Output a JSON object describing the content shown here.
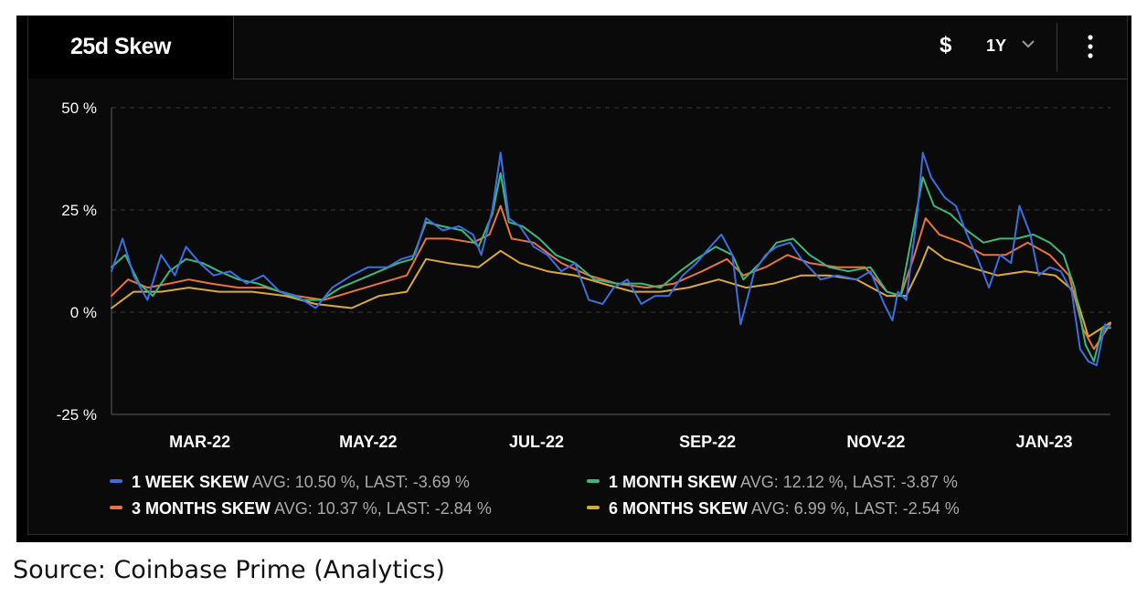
{
  "header": {
    "title": "25d Skew",
    "currency_label": "$",
    "range_label": "1Y"
  },
  "colors": {
    "background": "#0a0a0a",
    "grid": "#3a3a3a",
    "axis_text": "#ffffff",
    "week": "#3b6fe0",
    "month": "#3db87a",
    "three_month": "#e8743b",
    "six_month": "#d9a93a"
  },
  "legend": [
    {
      "name": "1 WEEK SKEW",
      "stats": "AVG: 10.50 %, LAST: -3.69 %",
      "color": "#3b6fe0"
    },
    {
      "name": "1 MONTH SKEW",
      "stats": "AVG: 12.12 %, LAST: -3.87 %",
      "color": "#3db87a"
    },
    {
      "name": "3 MONTHS SKEW",
      "stats": "AVG: 10.37 %, LAST: -2.84 %",
      "color": "#e8743b"
    },
    {
      "name": "6 MONTHS SKEW",
      "stats": "AVG: 6.99 %, LAST: -2.54 %",
      "color": "#d9a93a"
    }
  ],
  "source": "Source: Coinbase Prime (Analytics)",
  "chart_data": {
    "type": "line",
    "title": "25d Skew",
    "x_ticks": [
      "MAR-22",
      "MAY-22",
      "JUL-22",
      "SEP-22",
      "NOV-22",
      "JAN-23"
    ],
    "y_ticks": [
      "50 %",
      "25 %",
      "0 %",
      "-25 %"
    ],
    "ylim": [
      -25,
      50
    ],
    "xlim": [
      "2022-01-28",
      "2023-01-25"
    ],
    "grid": true,
    "legend_position": "bottom",
    "series": [
      {
        "name": "1 WEEK SKEW",
        "color": "#3b6fe0",
        "points": [
          [
            "2022-01-28",
            10
          ],
          [
            "2022-02-01",
            18
          ],
          [
            "2022-02-05",
            9
          ],
          [
            "2022-02-10",
            3
          ],
          [
            "2022-02-15",
            14
          ],
          [
            "2022-02-20",
            9
          ],
          [
            "2022-02-24",
            16
          ],
          [
            "2022-03-01",
            12
          ],
          [
            "2022-03-06",
            9
          ],
          [
            "2022-03-12",
            10
          ],
          [
            "2022-03-18",
            7
          ],
          [
            "2022-03-24",
            9
          ],
          [
            "2022-03-30",
            5
          ],
          [
            "2022-04-05",
            4
          ],
          [
            "2022-04-12",
            1
          ],
          [
            "2022-04-18",
            6
          ],
          [
            "2022-04-25",
            9
          ],
          [
            "2022-05-01",
            11
          ],
          [
            "2022-05-08",
            11
          ],
          [
            "2022-05-13",
            13
          ],
          [
            "2022-05-18",
            14
          ],
          [
            "2022-05-22",
            23
          ],
          [
            "2022-05-28",
            20
          ],
          [
            "2022-06-03",
            21
          ],
          [
            "2022-06-08",
            19
          ],
          [
            "2022-06-11",
            14
          ],
          [
            "2022-06-15",
            25
          ],
          [
            "2022-06-18",
            39
          ],
          [
            "2022-06-21",
            23
          ],
          [
            "2022-06-25",
            21
          ],
          [
            "2022-06-30",
            16
          ],
          [
            "2022-07-05",
            14
          ],
          [
            "2022-07-10",
            10
          ],
          [
            "2022-07-15",
            12
          ],
          [
            "2022-07-20",
            3
          ],
          [
            "2022-07-25",
            2
          ],
          [
            "2022-07-29",
            6
          ],
          [
            "2022-08-03",
            8
          ],
          [
            "2022-08-08",
            2
          ],
          [
            "2022-08-13",
            4
          ],
          [
            "2022-08-18",
            4
          ],
          [
            "2022-08-23",
            9
          ],
          [
            "2022-08-28",
            12
          ],
          [
            "2022-09-02",
            16
          ],
          [
            "2022-09-06",
            19
          ],
          [
            "2022-09-10",
            14
          ],
          [
            "2022-09-13",
            -3
          ],
          [
            "2022-09-18",
            10
          ],
          [
            "2022-09-22",
            14
          ],
          [
            "2022-09-26",
            16
          ],
          [
            "2022-10-01",
            17
          ],
          [
            "2022-10-05",
            13
          ],
          [
            "2022-10-12",
            8
          ],
          [
            "2022-10-18",
            9
          ],
          [
            "2022-10-25",
            8
          ],
          [
            "2022-10-30",
            10
          ],
          [
            "2022-11-04",
            2
          ],
          [
            "2022-11-07",
            -2
          ],
          [
            "2022-11-09",
            5
          ],
          [
            "2022-11-12",
            3
          ],
          [
            "2022-11-16",
            24
          ],
          [
            "2022-11-18",
            39
          ],
          [
            "2022-11-21",
            33
          ],
          [
            "2022-11-26",
            28
          ],
          [
            "2022-11-30",
            26
          ],
          [
            "2022-12-04",
            19
          ],
          [
            "2022-12-08",
            13
          ],
          [
            "2022-12-12",
            6
          ],
          [
            "2022-12-16",
            14
          ],
          [
            "2022-12-20",
            12
          ],
          [
            "2022-12-23",
            26
          ],
          [
            "2022-12-27",
            19
          ],
          [
            "2022-12-30",
            9
          ],
          [
            "2023-01-03",
            11
          ],
          [
            "2023-01-07",
            10
          ],
          [
            "2023-01-11",
            5
          ],
          [
            "2023-01-14",
            -9
          ],
          [
            "2023-01-17",
            -12
          ],
          [
            "2023-01-20",
            -13
          ],
          [
            "2023-01-23",
            -3
          ],
          [
            "2023-01-25",
            -3.69
          ]
        ]
      },
      {
        "name": "1 MONTH SKEW",
        "color": "#3db87a",
        "points": [
          [
            "2022-01-28",
            11
          ],
          [
            "2022-02-02",
            14
          ],
          [
            "2022-02-07",
            7
          ],
          [
            "2022-02-12",
            4
          ],
          [
            "2022-02-18",
            10
          ],
          [
            "2022-02-24",
            13
          ],
          [
            "2022-03-02",
            12
          ],
          [
            "2022-03-08",
            10
          ],
          [
            "2022-03-15",
            8
          ],
          [
            "2022-03-22",
            7
          ],
          [
            "2022-03-30",
            5
          ],
          [
            "2022-04-07",
            3
          ],
          [
            "2022-04-14",
            3
          ],
          [
            "2022-04-21",
            6
          ],
          [
            "2022-04-28",
            8
          ],
          [
            "2022-05-05",
            10
          ],
          [
            "2022-05-12",
            12
          ],
          [
            "2022-05-17",
            13
          ],
          [
            "2022-05-22",
            22
          ],
          [
            "2022-05-28",
            21
          ],
          [
            "2022-06-04",
            20
          ],
          [
            "2022-06-10",
            16
          ],
          [
            "2022-06-15",
            24
          ],
          [
            "2022-06-18",
            34
          ],
          [
            "2022-06-21",
            22
          ],
          [
            "2022-06-26",
            21
          ],
          [
            "2022-07-02",
            18
          ],
          [
            "2022-07-08",
            14
          ],
          [
            "2022-07-15",
            12
          ],
          [
            "2022-07-22",
            8
          ],
          [
            "2022-07-30",
            7
          ],
          [
            "2022-08-08",
            7
          ],
          [
            "2022-08-15",
            6
          ],
          [
            "2022-08-22",
            10
          ],
          [
            "2022-08-28",
            13
          ],
          [
            "2022-09-04",
            16
          ],
          [
            "2022-09-10",
            14
          ],
          [
            "2022-09-14",
            8
          ],
          [
            "2022-09-20",
            12
          ],
          [
            "2022-09-26",
            17
          ],
          [
            "2022-10-02",
            18
          ],
          [
            "2022-10-08",
            14
          ],
          [
            "2022-10-15",
            11
          ],
          [
            "2022-10-22",
            10
          ],
          [
            "2022-10-30",
            11
          ],
          [
            "2022-11-05",
            5
          ],
          [
            "2022-11-10",
            4
          ],
          [
            "2022-11-15",
            22
          ],
          [
            "2022-11-18",
            33
          ],
          [
            "2022-11-22",
            26
          ],
          [
            "2022-11-28",
            24
          ],
          [
            "2022-12-04",
            20
          ],
          [
            "2022-12-10",
            17
          ],
          [
            "2022-12-16",
            18
          ],
          [
            "2022-12-22",
            18
          ],
          [
            "2022-12-28",
            19
          ],
          [
            "2023-01-03",
            17
          ],
          [
            "2023-01-08",
            14
          ],
          [
            "2023-01-12",
            6
          ],
          [
            "2023-01-16",
            -8
          ],
          [
            "2023-01-19",
            -12
          ],
          [
            "2023-01-22",
            -4
          ],
          [
            "2023-01-25",
            -3.87
          ]
        ]
      },
      {
        "name": "3 MONTHS SKEW",
        "color": "#e8743b",
        "points": [
          [
            "2022-01-28",
            4
          ],
          [
            "2022-02-03",
            8
          ],
          [
            "2022-02-10",
            6
          ],
          [
            "2022-02-18",
            7
          ],
          [
            "2022-02-25",
            8
          ],
          [
            "2022-03-05",
            7
          ],
          [
            "2022-03-15",
            6
          ],
          [
            "2022-03-25",
            6
          ],
          [
            "2022-04-05",
            4
          ],
          [
            "2022-04-15",
            3
          ],
          [
            "2022-04-25",
            5
          ],
          [
            "2022-05-05",
            7
          ],
          [
            "2022-05-15",
            9
          ],
          [
            "2022-05-22",
            18
          ],
          [
            "2022-05-30",
            18
          ],
          [
            "2022-06-08",
            17
          ],
          [
            "2022-06-14",
            19
          ],
          [
            "2022-06-18",
            26
          ],
          [
            "2022-06-22",
            18
          ],
          [
            "2022-06-30",
            17
          ],
          [
            "2022-07-10",
            12
          ],
          [
            "2022-07-20",
            9
          ],
          [
            "2022-07-30",
            7
          ],
          [
            "2022-08-10",
            6
          ],
          [
            "2022-08-20",
            7
          ],
          [
            "2022-08-30",
            10
          ],
          [
            "2022-09-08",
            13
          ],
          [
            "2022-09-14",
            9
          ],
          [
            "2022-09-22",
            11
          ],
          [
            "2022-09-30",
            14
          ],
          [
            "2022-10-08",
            12
          ],
          [
            "2022-10-18",
            11
          ],
          [
            "2022-10-28",
            11
          ],
          [
            "2022-11-05",
            5
          ],
          [
            "2022-11-10",
            4
          ],
          [
            "2022-11-15",
            14
          ],
          [
            "2022-11-19",
            23
          ],
          [
            "2022-11-24",
            19
          ],
          [
            "2022-12-02",
            17
          ],
          [
            "2022-12-10",
            14
          ],
          [
            "2022-12-18",
            14
          ],
          [
            "2022-12-26",
            17
          ],
          [
            "2023-01-03",
            14
          ],
          [
            "2023-01-10",
            9
          ],
          [
            "2023-01-15",
            -4
          ],
          [
            "2023-01-19",
            -9
          ],
          [
            "2023-01-25",
            -2.84
          ]
        ]
      },
      {
        "name": "6 MONTHS SKEW",
        "color": "#d9a93a",
        "points": [
          [
            "2022-01-28",
            1
          ],
          [
            "2022-02-05",
            5
          ],
          [
            "2022-02-15",
            5
          ],
          [
            "2022-02-25",
            6
          ],
          [
            "2022-03-08",
            5
          ],
          [
            "2022-03-20",
            5
          ],
          [
            "2022-04-01",
            4
          ],
          [
            "2022-04-12",
            2
          ],
          [
            "2022-04-25",
            1
          ],
          [
            "2022-05-05",
            4
          ],
          [
            "2022-05-15",
            5
          ],
          [
            "2022-05-22",
            13
          ],
          [
            "2022-05-30",
            12
          ],
          [
            "2022-06-10",
            11
          ],
          [
            "2022-06-18",
            15
          ],
          [
            "2022-06-25",
            12
          ],
          [
            "2022-07-05",
            10
          ],
          [
            "2022-07-15",
            9
          ],
          [
            "2022-07-25",
            7
          ],
          [
            "2022-08-05",
            5
          ],
          [
            "2022-08-15",
            5
          ],
          [
            "2022-08-25",
            6
          ],
          [
            "2022-09-05",
            8
          ],
          [
            "2022-09-15",
            6
          ],
          [
            "2022-09-25",
            7
          ],
          [
            "2022-10-05",
            9
          ],
          [
            "2022-10-15",
            9
          ],
          [
            "2022-10-25",
            8
          ],
          [
            "2022-11-05",
            4
          ],
          [
            "2022-11-12",
            4
          ],
          [
            "2022-11-17",
            11
          ],
          [
            "2022-11-20",
            16
          ],
          [
            "2022-11-26",
            13
          ],
          [
            "2022-12-05",
            11
          ],
          [
            "2022-12-15",
            9
          ],
          [
            "2022-12-25",
            10
          ],
          [
            "2023-01-05",
            9
          ],
          [
            "2023-01-12",
            5
          ],
          [
            "2023-01-17",
            -6
          ],
          [
            "2023-01-25",
            -2.54
          ]
        ]
      }
    ]
  }
}
